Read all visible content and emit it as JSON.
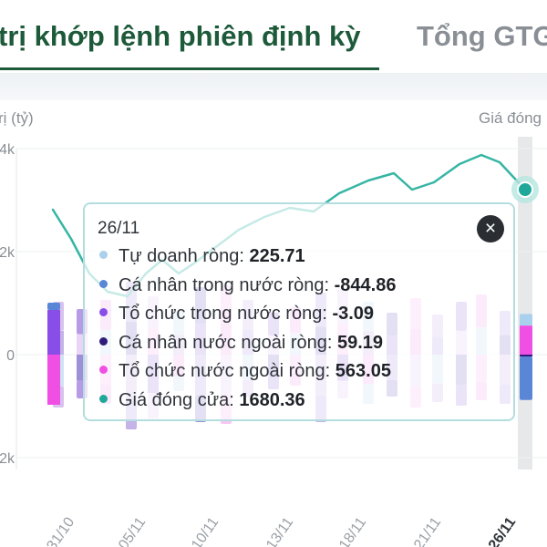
{
  "tabs": {
    "active_label": "trị khớp lệnh phiên định kỳ",
    "inactive_label": "Tổng GTGD"
  },
  "chart_data": {
    "type": "bar",
    "y_left_title": "rị (tỷ)",
    "y_right_title": "Giá đóng",
    "y_ticks": [
      "4k",
      "2k",
      "0",
      "-2k"
    ],
    "x_ticks": [
      "31/10",
      "05/11",
      "10/11",
      "13/11",
      "18/11",
      "21/11",
      "26/11"
    ],
    "ylim": [
      -2000,
      4000
    ],
    "price_line_color": "#35b5a4",
    "series": [
      {
        "name": "Tự doanh ròng",
        "color": "#a9d0ec"
      },
      {
        "name": "Cá nhân trong nước ròng",
        "color": "#5a86d6"
      },
      {
        "name": "Tổ chức trong nước ròng",
        "color": "#8a4ee8"
      },
      {
        "name": "Cá nhân nước ngoài ròng",
        "color": "#2f1c7a"
      },
      {
        "name": "Tổ chức nước ngoài ròng",
        "color": "#f04fe4"
      },
      {
        "name": "Giá đóng cửa",
        "color": "#1fa89a"
      }
    ],
    "last_bar": {
      "date": "26/11",
      "tu_doanh": 225.71,
      "ca_nhan_trong_nuoc": -844.86,
      "to_chuc_trong_nuoc": -3.09,
      "ca_nhan_nuoc_ngoai": 59.19,
      "to_chuc_nuoc_ngoai": 563.05,
      "gia_dong_cua": 1680.36
    }
  },
  "tooltip": {
    "date": "26/11",
    "close_symbol": "×",
    "rows": [
      {
        "label": "Tự doanh ròng: ",
        "value": "225.71",
        "color": "#a9d0ec"
      },
      {
        "label": "Cá nhân trong nước ròng: ",
        "value": "-844.86",
        "color": "#5a86d6"
      },
      {
        "label": "Tổ chức trong nước ròng: ",
        "value": "-3.09",
        "color": "#8a4ee8"
      },
      {
        "label": "Cá nhân nước ngoài ròng: ",
        "value": "59.19",
        "color": "#2f1c7a"
      },
      {
        "label": "Tổ chức nước ngoài ròng: ",
        "value": "563.05",
        "color": "#f04fe4"
      },
      {
        "label": "Giá đóng cửa: ",
        "value": "1680.36",
        "color": "#1fa89a"
      }
    ]
  }
}
